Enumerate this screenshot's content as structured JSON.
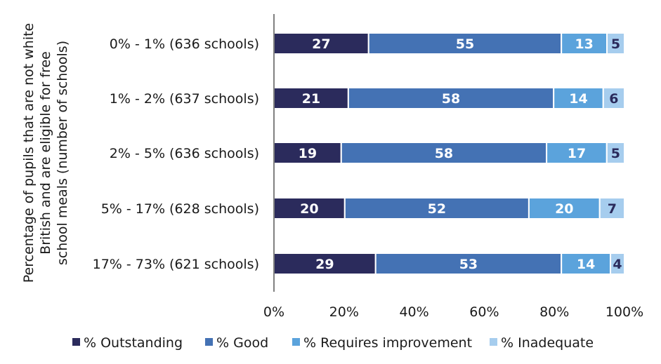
{
  "chart_data": {
    "type": "bar",
    "orientation": "horizontal",
    "stacked": "percent",
    "title": "",
    "ylabel": "Percentage of pupils that are not white British and are eligible for free school meals (number of schools)",
    "xlabel": "",
    "xlim": [
      0,
      100
    ],
    "xticks": [
      "0%",
      "20%",
      "40%",
      "60%",
      "80%",
      "100%"
    ],
    "grid": false,
    "legend_position": "bottom",
    "categories": [
      "0% - 1% (636 schools)",
      "1% - 2% (637 schools)",
      "2% - 5% (636 schools)",
      "5% - 17% (628 schools)",
      "17% - 73% (621 schools)"
    ],
    "series": [
      {
        "name": "% Outstanding",
        "color": "#2b2b5c",
        "label_color": "#ffffff",
        "values": [
          27,
          21,
          19,
          20,
          29
        ]
      },
      {
        "name": "% Good",
        "color": "#4472b4",
        "label_color": "#ffffff",
        "values": [
          55,
          58,
          58,
          52,
          53
        ]
      },
      {
        "name": "% Requires improvement",
        "color": "#5ba3dc",
        "label_color": "#ffffff",
        "values": [
          13,
          14,
          17,
          20,
          14
        ]
      },
      {
        "name": "% Inadequate",
        "color": "#a6cdee",
        "label_color": "#2b2b5c",
        "values": [
          5,
          6,
          5,
          7,
          4
        ]
      }
    ]
  }
}
